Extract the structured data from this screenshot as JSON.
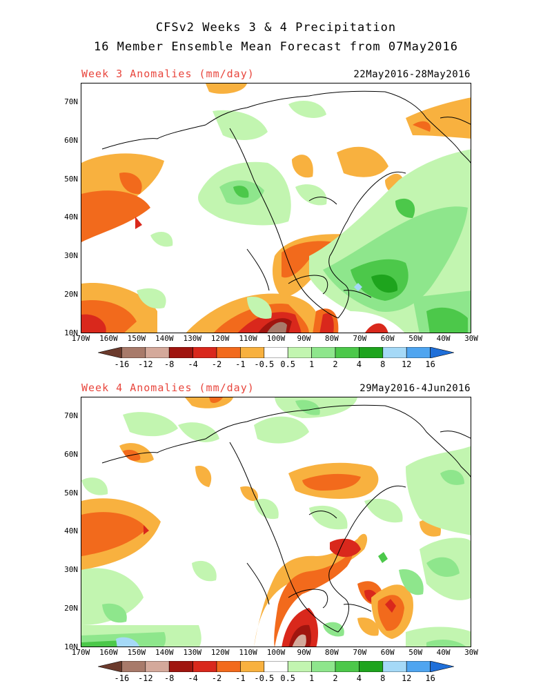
{
  "title_line1": "CFSv2 Weeks 3 & 4 Precipitation",
  "title_line2": "16 Member Ensemble Mean Forecast from 07May2016",
  "panels": [
    {
      "label": "Week 3 Anomalies (mm/day)",
      "dates": "22May2016-28May2016"
    },
    {
      "label": "Week 4 Anomalies (mm/day)",
      "dates": "29May2016-4Jun2016"
    }
  ],
  "lat_labels": [
    "70N",
    "60N",
    "50N",
    "40N",
    "30N",
    "20N",
    "10N"
  ],
  "lon_labels": [
    "170W",
    "160W",
    "150W",
    "140W",
    "130W",
    "120W",
    "110W",
    "100W",
    "90W",
    "80W",
    "70W",
    "60W",
    "50W",
    "40W",
    "30W"
  ],
  "colorbar": {
    "labels": [
      "-16",
      "-12",
      "-8",
      "-4",
      "-2",
      "-1",
      "-0.5",
      "0.5",
      "1",
      "2",
      "4",
      "8",
      "12",
      "16"
    ],
    "colors": [
      "#6b3a2c",
      "#a87a6a",
      "#d4a99b",
      "#a0150f",
      "#d9281c",
      "#f26a1c",
      "#f8b13f",
      "#ffffff",
      "#c2f5b0",
      "#8ee68c",
      "#4cc84a",
      "#1ea41d",
      "#a5d9f7",
      "#4fa5f0",
      "#1f6fd9"
    ]
  }
}
